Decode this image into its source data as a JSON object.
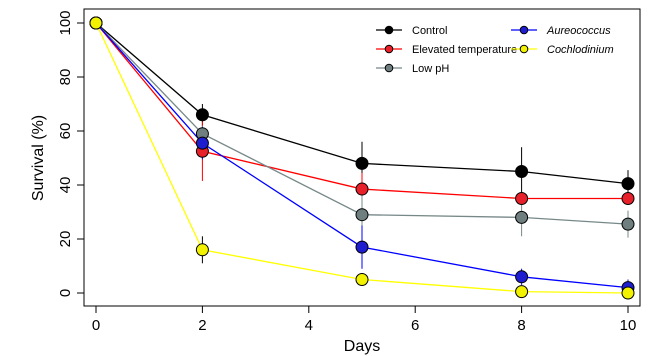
{
  "chart_data": {
    "type": "line",
    "title": "",
    "xlabel": "Days",
    "ylabel": "Survival (%)",
    "xlim": [
      0,
      10
    ],
    "ylim": [
      0,
      100
    ],
    "xticks": [
      0,
      2,
      4,
      6,
      8,
      10
    ],
    "yticks": [
      0,
      20,
      40,
      60,
      80,
      100
    ],
    "grid": false,
    "legend_position": "top-right",
    "series": [
      {
        "name": "Control",
        "italic": false,
        "color": "#000000",
        "marker_fill": "#000000",
        "x": [
          0,
          2,
          5,
          8,
          10
        ],
        "y": [
          100,
          66,
          48,
          45,
          40.5
        ],
        "err": [
          0,
          4,
          8,
          9,
          5
        ]
      },
      {
        "name": "Elevated temperature",
        "italic": false,
        "color": "#ff0000",
        "marker_fill": "#e8202a",
        "x": [
          0,
          2,
          5,
          8,
          10
        ],
        "y": [
          100,
          52.5,
          38.5,
          35,
          35
        ],
        "err": [
          0,
          11,
          6,
          0,
          0
        ]
      },
      {
        "name": "Low pH",
        "italic": false,
        "color": "#778888",
        "marker_fill": "#6f7f7f",
        "x": [
          0,
          2,
          5,
          8,
          10
        ],
        "y": [
          100,
          59,
          29,
          28,
          25.5
        ],
        "err": [
          0,
          3,
          7,
          7,
          5
        ]
      },
      {
        "name": "Aureococcus",
        "italic": true,
        "color": "#0000ff",
        "marker_fill": "#1e1ed0",
        "x": [
          0,
          2,
          5,
          8,
          10
        ],
        "y": [
          100,
          55.5,
          17,
          6,
          2
        ],
        "err": [
          0,
          6,
          8,
          3,
          3
        ]
      },
      {
        "name": "Cochlodinium",
        "italic": true,
        "color": "#ffff00",
        "marker_fill": "#f2f200",
        "x": [
          0,
          2,
          5,
          8,
          10
        ],
        "y": [
          100,
          16,
          5,
          0.5,
          0
        ],
        "err": [
          0,
          5,
          2,
          1,
          1
        ]
      }
    ]
  }
}
